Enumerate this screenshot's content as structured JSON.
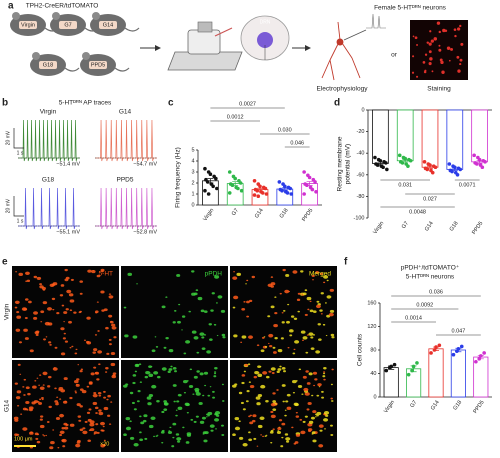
{
  "panel_a": {
    "label": "a",
    "title": "TPH2-CreER/tdTOMATO",
    "groups": [
      "Virgin",
      "G7",
      "G14",
      "G18",
      "PPD5"
    ],
    "region": "DRN",
    "target": "Female 5-HTᴰᴿᴺ neurons",
    "method_1": "Electrophysiology",
    "connector": "or",
    "method_2": "Staining"
  },
  "panel_b": {
    "label": "b",
    "title": "5-HTᴰᴿᴺ AP traces",
    "scale_voltage": "20 mV",
    "scale_time": "1 s",
    "traces": [
      {
        "name": "Virgin",
        "potential": "−51.4 mV",
        "color": "#3f8a36"
      },
      {
        "name": "G14",
        "potential": "−54.7 mV",
        "color": "#e8735a"
      },
      {
        "name": "G18",
        "potential": "−55.1 mV",
        "color": "#5a5ae0"
      },
      {
        "name": "PPD5",
        "potential": "−52.8 mV",
        "color": "#d060d0"
      }
    ]
  },
  "panel_e": {
    "label": "e",
    "channels": [
      "5-HT",
      "pPDH",
      "Merged"
    ],
    "rows": [
      "Virgin",
      "G14"
    ],
    "scale": "100 μm",
    "magnification": "×20"
  },
  "chart_data": [
    {
      "panel": "c",
      "type": "bar",
      "ylabel": [
        "Firing frequency (Hz)"
      ],
      "categories": [
        "Virgin",
        "G7",
        "G14",
        "G18",
        "PPD5"
      ],
      "colors": [
        "#111111",
        "#2fb84a",
        "#e8302a",
        "#2a3ce8",
        "#d030d0"
      ],
      "values": [
        2.2,
        1.95,
        1.4,
        1.45,
        1.95
      ],
      "errors": [
        0.2,
        0.17,
        0.12,
        0.11,
        0.18
      ],
      "points": [
        [
          3.3,
          3.0,
          2.8,
          2.6,
          2.4,
          2.3,
          2.1,
          1.9,
          1.7,
          1.5,
          1.3,
          1.0
        ],
        [
          3.0,
          2.6,
          2.4,
          2.2,
          2.0,
          1.9,
          1.8,
          1.6,
          1.5,
          1.3,
          1.1
        ],
        [
          2.2,
          1.9,
          1.7,
          1.6,
          1.5,
          1.4,
          1.3,
          1.2,
          1.1,
          1.0,
          0.9,
          0.8
        ],
        [
          2.1,
          1.9,
          1.7,
          1.6,
          1.5,
          1.4,
          1.3,
          1.2,
          1.1,
          1.0
        ],
        [
          3.0,
          2.7,
          2.5,
          2.3,
          2.1,
          1.9,
          1.8,
          1.6,
          1.4,
          1.2,
          1.0
        ]
      ],
      "ylim": [
        0,
        5
      ],
      "yticks": [
        0,
        1,
        2,
        3,
        4,
        5
      ],
      "brackets": "above",
      "comparisons": [
        {
          "label": "0.0027",
          "pair": [
            "Virgin",
            "G18"
          ]
        },
        {
          "label": "0.0012",
          "pair": [
            "Virgin",
            "G14"
          ]
        },
        {
          "label": "0.030",
          "pair": [
            "G14",
            "PPD5"
          ]
        },
        {
          "label": "0.046",
          "pair": [
            "G18",
            "PPD5"
          ]
        }
      ]
    },
    {
      "panel": "d",
      "type": "bar",
      "ylabel": [
        "Resting membrane",
        "potential (mV)"
      ],
      "categories": [
        "Virgin",
        "G7",
        "G14",
        "G18",
        "PPD5"
      ],
      "colors": [
        "#111111",
        "#2fb84a",
        "#e8302a",
        "#2a3ce8",
        "#d030d0"
      ],
      "values": [
        -49.5,
        -47,
        -53,
        -55,
        -48
      ],
      "errors": [
        1.2,
        1.1,
        1.0,
        1.1,
        1.2
      ],
      "points": [
        [
          -44,
          -46,
          -47,
          -48,
          -49,
          -50,
          -51,
          -52,
          -53,
          -55
        ],
        [
          -42,
          -44,
          -45,
          -46,
          -47,
          -48,
          -49,
          -50,
          -52
        ],
        [
          -48,
          -50,
          -51,
          -52,
          -53,
          -54,
          -55,
          -56,
          -58
        ],
        [
          -50,
          -52,
          -53,
          -54,
          -55,
          -56,
          -57,
          -58,
          -60
        ],
        [
          -42,
          -44,
          -46,
          -47,
          -48,
          -49,
          -50,
          -51,
          -53
        ]
      ],
      "ylim": [
        -100,
        0
      ],
      "yticks": [
        -100,
        -80,
        -60,
        -40,
        -20,
        0
      ],
      "brackets": "below",
      "comparisons": [
        {
          "label": "0.031",
          "pair": [
            "Virgin",
            "G14"
          ]
        },
        {
          "label": "0.0071",
          "pair": [
            "G18",
            "PPD5"
          ]
        },
        {
          "label": "0.027",
          "pair": [
            "G7",
            "G18"
          ]
        },
        {
          "label": "0.0048",
          "pair": [
            "Virgin",
            "G18"
          ]
        }
      ]
    },
    {
      "panel": "f",
      "type": "bar",
      "title": [
        "pPDH⁺/tdTOMATO⁺",
        "5-HTᴰᴿᴺ neurons"
      ],
      "ylabel": [
        "Cell counts"
      ],
      "categories": [
        "Virgin",
        "G7",
        "G14",
        "G18",
        "PPD5"
      ],
      "colors": [
        "#111111",
        "#2fb84a",
        "#e8302a",
        "#2a3ce8",
        "#d030d0"
      ],
      "values": [
        50,
        48,
        82,
        80,
        68
      ],
      "errors": [
        3,
        5,
        3,
        3,
        3
      ],
      "points": [
        [
          45,
          50,
          52,
          55
        ],
        [
          38,
          45,
          52,
          58
        ],
        [
          75,
          80,
          85,
          88
        ],
        [
          72,
          78,
          82,
          86
        ],
        [
          60,
          65,
          70,
          75
        ]
      ],
      "ylim": [
        0,
        160
      ],
      "yticks": [
        0,
        40,
        80,
        120,
        160
      ],
      "brackets": "above",
      "comparisons": [
        {
          "label": "0.036",
          "pair": [
            "Virgin",
            "PPD5"
          ]
        },
        {
          "label": "0.0092",
          "pair": [
            "Virgin",
            "G18"
          ]
        },
        {
          "label": "0.0014",
          "pair": [
            "Virgin",
            "G14"
          ]
        },
        {
          "label": "0.047",
          "pair": [
            "G14",
            "PPD5"
          ]
        }
      ]
    }
  ]
}
